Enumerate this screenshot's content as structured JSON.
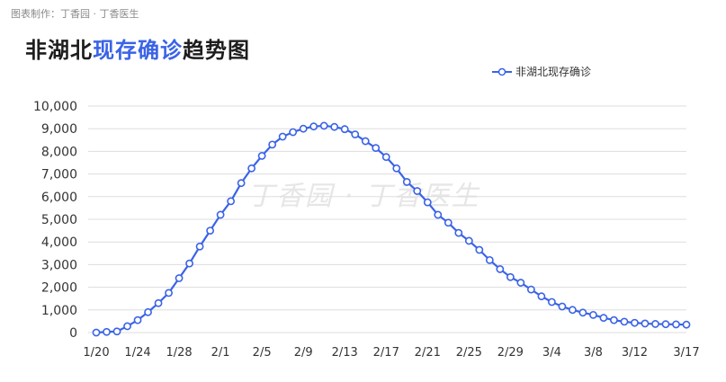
{
  "credit": "图表制作：丁香园 · 丁香医生",
  "title": {
    "part1": "非湖北",
    "part2": "现存确诊",
    "part3": "趋势图"
  },
  "legend_label": "非湖北现存确诊",
  "watermark": "丁香园 · 丁香医生",
  "colors": {
    "line": "#3a63e6",
    "grid": "#dddddd",
    "axis_text": "#333333"
  },
  "chart_data": {
    "type": "line",
    "title": "非湖北现存确诊趋势图",
    "xlabel": "",
    "ylabel": "",
    "ylim": [
      0,
      10000
    ],
    "yticks": [
      0,
      1000,
      2000,
      3000,
      4000,
      5000,
      6000,
      7000,
      8000,
      9000,
      10000
    ],
    "ytick_labels": [
      "0",
      "1,000",
      "2,000",
      "3,000",
      "4,000",
      "5,000",
      "6,000",
      "7,000",
      "8,000",
      "9,000",
      "10,000"
    ],
    "xtick_labels": [
      "1/20",
      "1/24",
      "1/28",
      "2/1",
      "2/5",
      "2/9",
      "2/13",
      "2/17",
      "2/21",
      "2/25",
      "2/29",
      "3/4",
      "3/8",
      "3/12",
      "3/17"
    ],
    "x": [
      "1/20",
      "1/21",
      "1/22",
      "1/23",
      "1/24",
      "1/25",
      "1/26",
      "1/27",
      "1/28",
      "1/29",
      "1/30",
      "1/31",
      "2/1",
      "2/2",
      "2/3",
      "2/4",
      "2/5",
      "2/6",
      "2/7",
      "2/8",
      "2/9",
      "2/10",
      "2/11",
      "2/12",
      "2/13",
      "2/14",
      "2/15",
      "2/16",
      "2/17",
      "2/18",
      "2/19",
      "2/20",
      "2/21",
      "2/22",
      "2/23",
      "2/24",
      "2/25",
      "2/26",
      "2/27",
      "2/28",
      "2/29",
      "3/1",
      "3/2",
      "3/3",
      "3/4",
      "3/5",
      "3/6",
      "3/7",
      "3/8",
      "3/9",
      "3/10",
      "3/11",
      "3/12",
      "3/13",
      "3/14",
      "3/15",
      "3/16",
      "3/17"
    ],
    "series": [
      {
        "name": "非湖北现存确诊",
        "values": [
          0,
          30,
          50,
          280,
          550,
          900,
          1300,
          1750,
          2400,
          3050,
          3800,
          4500,
          5200,
          5800,
          6600,
          7250,
          7800,
          8300,
          8650,
          8850,
          9000,
          9100,
          9130,
          9080,
          8980,
          8750,
          8450,
          8150,
          7750,
          7250,
          6650,
          6250,
          5750,
          5200,
          4850,
          4400,
          4050,
          3650,
          3200,
          2800,
          2450,
          2200,
          1900,
          1600,
          1350,
          1150,
          1000,
          880,
          780,
          650,
          550,
          480,
          430,
          400,
          380,
          370,
          360,
          350
        ]
      }
    ],
    "grid": true,
    "legend_position": "top-right"
  }
}
